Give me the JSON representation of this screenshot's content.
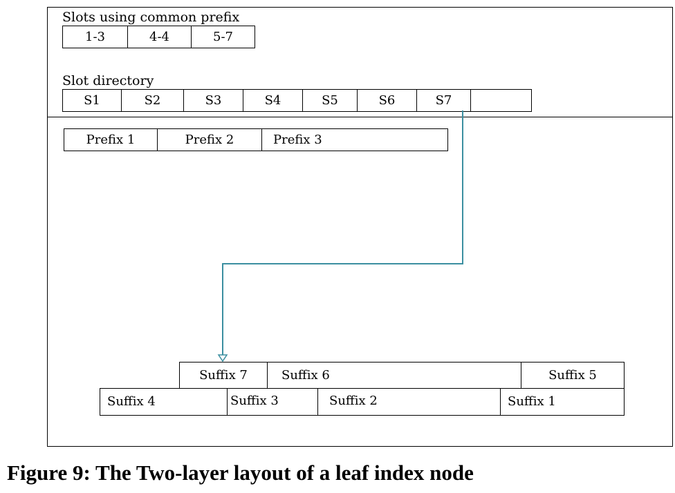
{
  "diagram": {
    "prefix_slots": {
      "label": "Slots using common prefix",
      "items": [
        "1-3",
        "4-4",
        "5-7"
      ]
    },
    "slot_directory": {
      "label": "Slot directory",
      "items": [
        "S1",
        "S2",
        "S3",
        "S4",
        "S5",
        "S6",
        "S7",
        ""
      ]
    },
    "prefixes": [
      "Prefix 1",
      "Prefix 2",
      "Prefix 3"
    ],
    "suffix_row_top": [
      "Suffix 7",
      "Suffix 6",
      "Suffix 5"
    ],
    "suffix_row_bottom": [
      "Suffix 4",
      "Suffix 3",
      "Suffix 2",
      "Suffix 1"
    ],
    "pointer": {
      "from": "S7",
      "to": "Suffix 7",
      "color": "#3b8fa0"
    }
  },
  "caption": "Figure 9: The Two-layer layout of a leaf index node"
}
